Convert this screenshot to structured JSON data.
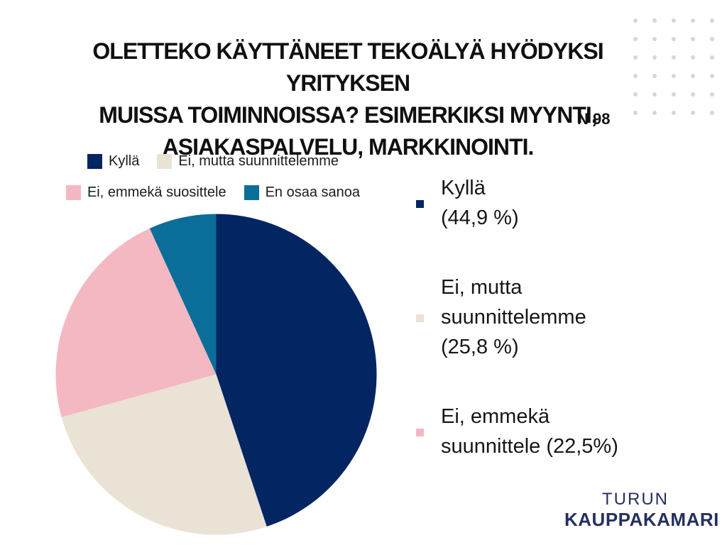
{
  "title": {
    "line1": "OLETTEKO KÄYTTÄNEET TEKOÄLYÄ HYÖDYKSI YRITYKSEN",
    "line2": "MUISSA TOIMINNOISSA? ESIMERKIKSI MYYNTI,",
    "line3": "ASIAKASPALVELU, MARKKINOINTI.",
    "sample_label": "N 98"
  },
  "chart_data": {
    "type": "pie",
    "title": "OLETTEKO KÄYTTÄNEET TEKOÄLYÄ HYÖDYKSI YRITYKSEN MUISSA TOIMINNOISSA? ESIMERKIKSI MYYNTI, ASIAKASPALVELU, MARKKINOINTI.",
    "sample_size_label": "N 98",
    "categories": [
      "Kyllä",
      "Ei, mutta suunnittelemme",
      "Ei, emmekä suosittele",
      "En osaa sanoa"
    ],
    "values": [
      44.9,
      25.8,
      22.5,
      6.8
    ],
    "colors": [
      "#032663",
      "#E9E2D5",
      "#F4B8C2",
      "#0B6E99"
    ],
    "start_angle_deg": 0,
    "direction": "clockwise",
    "legend_position": "top-left",
    "value_suffix": "%"
  },
  "callouts": [
    {
      "text": "Kyllä\n(44,9 %)"
    },
    {
      "text": "Ei, mutta\nsuunnittelemme\n(25,8 %)"
    },
    {
      "text": "Ei, emmekä\nsuunnittele (22,5%)"
    }
  ],
  "logo": {
    "top": "TURUN",
    "bottom": "KAUPPAKAMARI",
    "color": "#25305E"
  },
  "decor": {
    "dot_grid": {
      "rows": 6,
      "cols": 5,
      "color": "#D6D6D6"
    }
  }
}
